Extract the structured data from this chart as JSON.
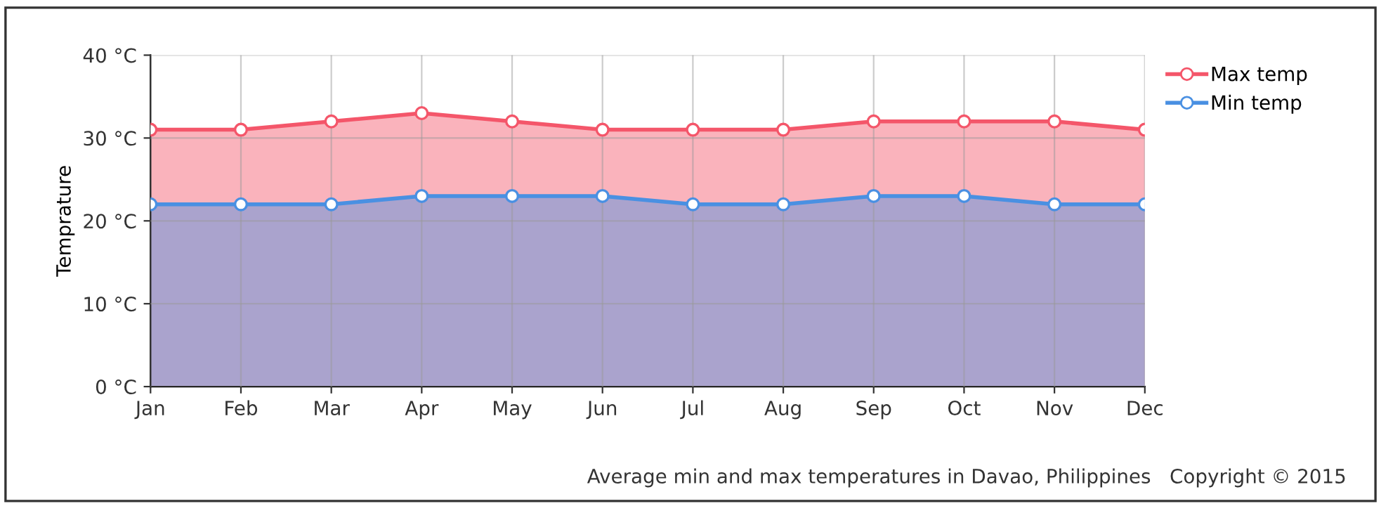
{
  "chart_data": {
    "type": "area",
    "ylabel": "Temprature",
    "categories": [
      "Jan",
      "Feb",
      "Mar",
      "Apr",
      "May",
      "Jun",
      "Jul",
      "Aug",
      "Sep",
      "Oct",
      "Nov",
      "Dec"
    ],
    "series": [
      {
        "name": "Max temp",
        "color": "#f4566a",
        "values": [
          31,
          31,
          32,
          33,
          32,
          31,
          31,
          31,
          32,
          32,
          32,
          31
        ]
      },
      {
        "name": "Min temp",
        "color": "#4a90e2",
        "values": [
          22,
          22,
          22,
          23,
          23,
          23,
          22,
          22,
          23,
          23,
          22,
          22
        ]
      }
    ],
    "ylim": [
      0,
      40
    ],
    "yticks": [
      {
        "value": 0,
        "label": "0 °C"
      },
      {
        "value": 10,
        "label": "10 °C"
      },
      {
        "value": 20,
        "label": "20 °C"
      },
      {
        "value": 30,
        "label": "30 °C"
      },
      {
        "value": 40,
        "label": "40 °C"
      }
    ],
    "grid": true,
    "legend": "top right",
    "marker": "circle",
    "annotations": [
      "Average min and max temperatures in Davao, Philippines   Copyright © 2015"
    ]
  }
}
